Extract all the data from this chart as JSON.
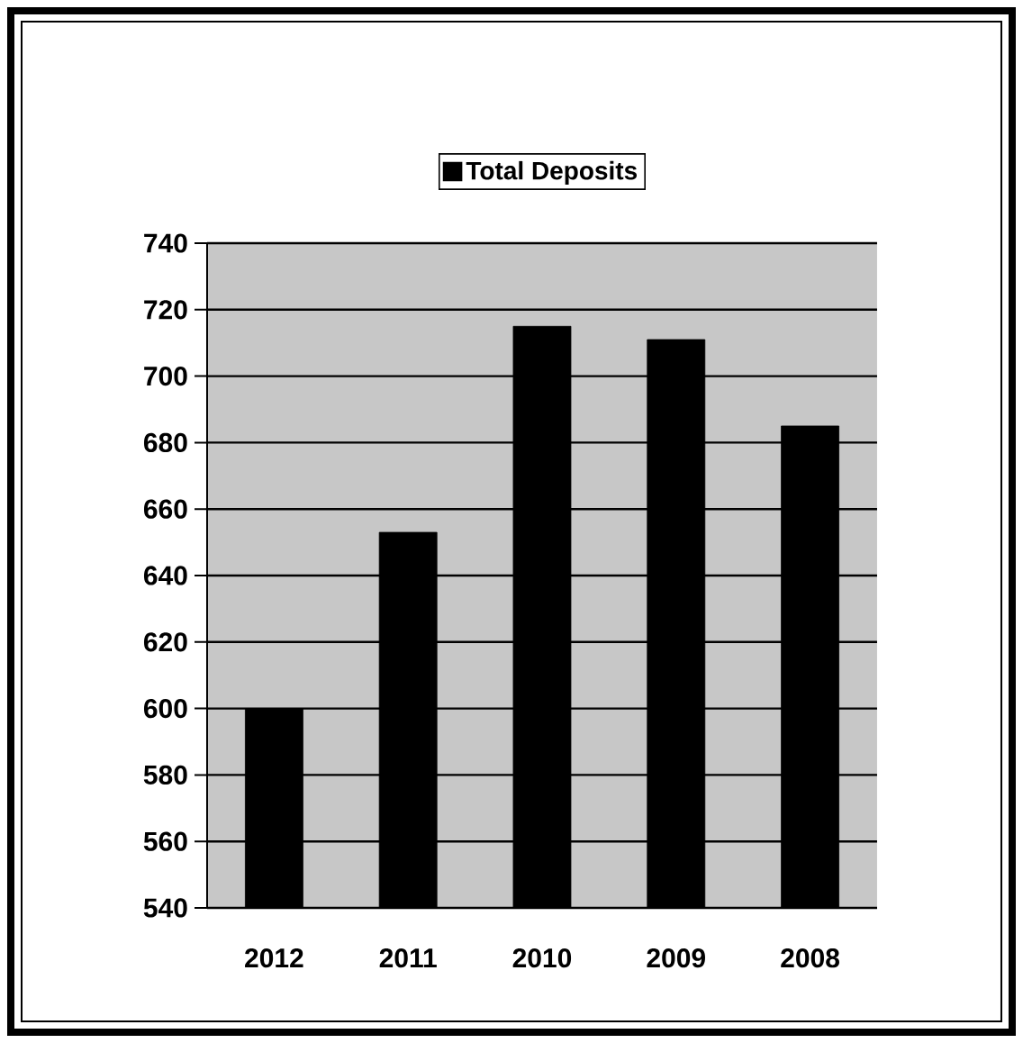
{
  "chart_data": {
    "type": "bar",
    "categories": [
      "2012",
      "2011",
      "2010",
      "2009",
      "2008"
    ],
    "series": [
      {
        "name": "Total Deposits",
        "color": "#000000",
        "values": [
          600,
          653,
          715,
          711,
          685
        ]
      }
    ],
    "ylim": [
      540,
      740
    ],
    "yticks": [
      540,
      560,
      580,
      600,
      620,
      640,
      660,
      680,
      700,
      720,
      740
    ],
    "grid": "y",
    "legend": "top"
  }
}
